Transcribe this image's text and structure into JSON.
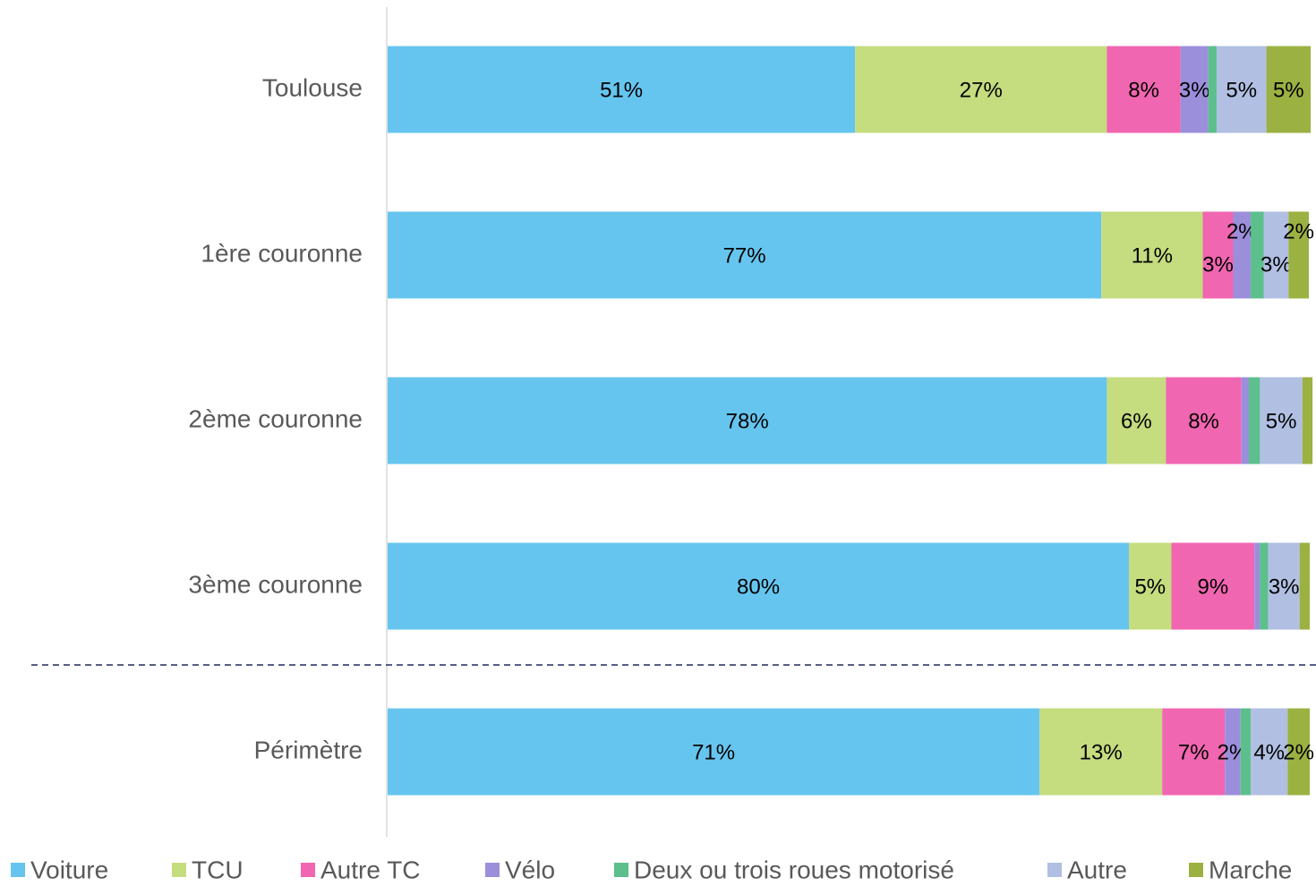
{
  "chart_data": {
    "type": "stacked_bar_horizontal",
    "categories": [
      "Toulouse",
      "1ère couronne",
      "2ème couronne",
      "3ème couronne",
      "Périmètre"
    ],
    "xlim": [
      0,
      100
    ],
    "series": [
      {
        "name": "Voiture",
        "color": "#66c5ef",
        "values": [
          50.7,
          77.4,
          78,
          80.4,
          70.7
        ],
        "value_labels": [
          "51%",
          "77%",
          "78%",
          "80%",
          "71%"
        ]
      },
      {
        "name": "TCU",
        "color": "#c5dc7f",
        "values": [
          27.3,
          11,
          6.4,
          4.6,
          13.3
        ],
        "value_labels": [
          "27%",
          "11%",
          "6%",
          "5%",
          "13%"
        ]
      },
      {
        "name": "Autre TC",
        "color": "#f066b0",
        "values": [
          8.0,
          3.3,
          8.2,
          9.0,
          6.8
        ],
        "value_labels": [
          "8%",
          "3%",
          "8%",
          "9%",
          "7%"
        ]
      },
      {
        "name": "Vélo",
        "color": "#9b8fdb",
        "values": [
          3.0,
          1.9,
          0.8,
          0.6,
          1.7
        ],
        "value_labels": [
          "3%",
          "2%",
          null,
          null,
          "2%"
        ]
      },
      {
        "name": "Deux ou trois roues motorisé",
        "color": "#5cbf8c",
        "values": [
          0.9,
          1.4,
          1.2,
          0.9,
          1.1
        ],
        "value_labels": [
          null,
          null,
          null,
          null,
          null
        ]
      },
      {
        "name": "Autre",
        "color": "#b0bfe2",
        "values": [
          5.4,
          2.7,
          4.6,
          3.4,
          4.0
        ],
        "value_labels": [
          "5%",
          "3%",
          "5%",
          "3%",
          "4%"
        ]
      },
      {
        "name": "Marche",
        "color": "#9bb141",
        "values": [
          4.8,
          2.2,
          1.1,
          1.1,
          2.4
        ],
        "value_labels": [
          "5%",
          "2%",
          null,
          null,
          "2%"
        ]
      }
    ]
  }
}
